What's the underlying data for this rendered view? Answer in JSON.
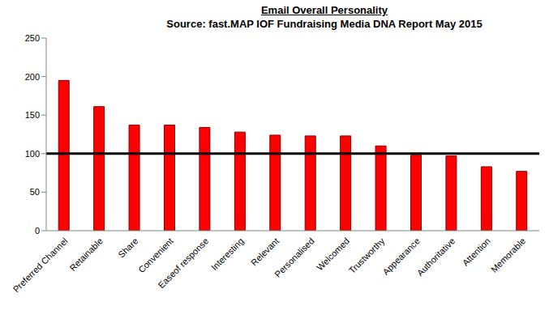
{
  "chart_data": {
    "type": "bar",
    "title": "Email Overall Personality",
    "subtitle": "Source: fast.MAP IOF Fundraising Media DNA Report May 2015",
    "categories": [
      "Preferred Channel",
      "Retainable",
      "Share",
      "Convenient",
      "Easeof response",
      "Interesting",
      "Relevant",
      "Personalised",
      "Welcomed",
      "Trustworthy",
      "Appearance",
      "Authoritative",
      "Attention",
      "Memorable"
    ],
    "values": [
      195,
      161,
      137,
      137,
      134,
      128,
      124,
      123,
      123,
      110,
      98,
      97,
      83,
      77
    ],
    "color": "#ff0000",
    "ylim": [
      0,
      250
    ],
    "yticks": [
      0,
      50,
      100,
      150,
      200,
      250
    ],
    "reference_line": 100,
    "grid": false
  }
}
